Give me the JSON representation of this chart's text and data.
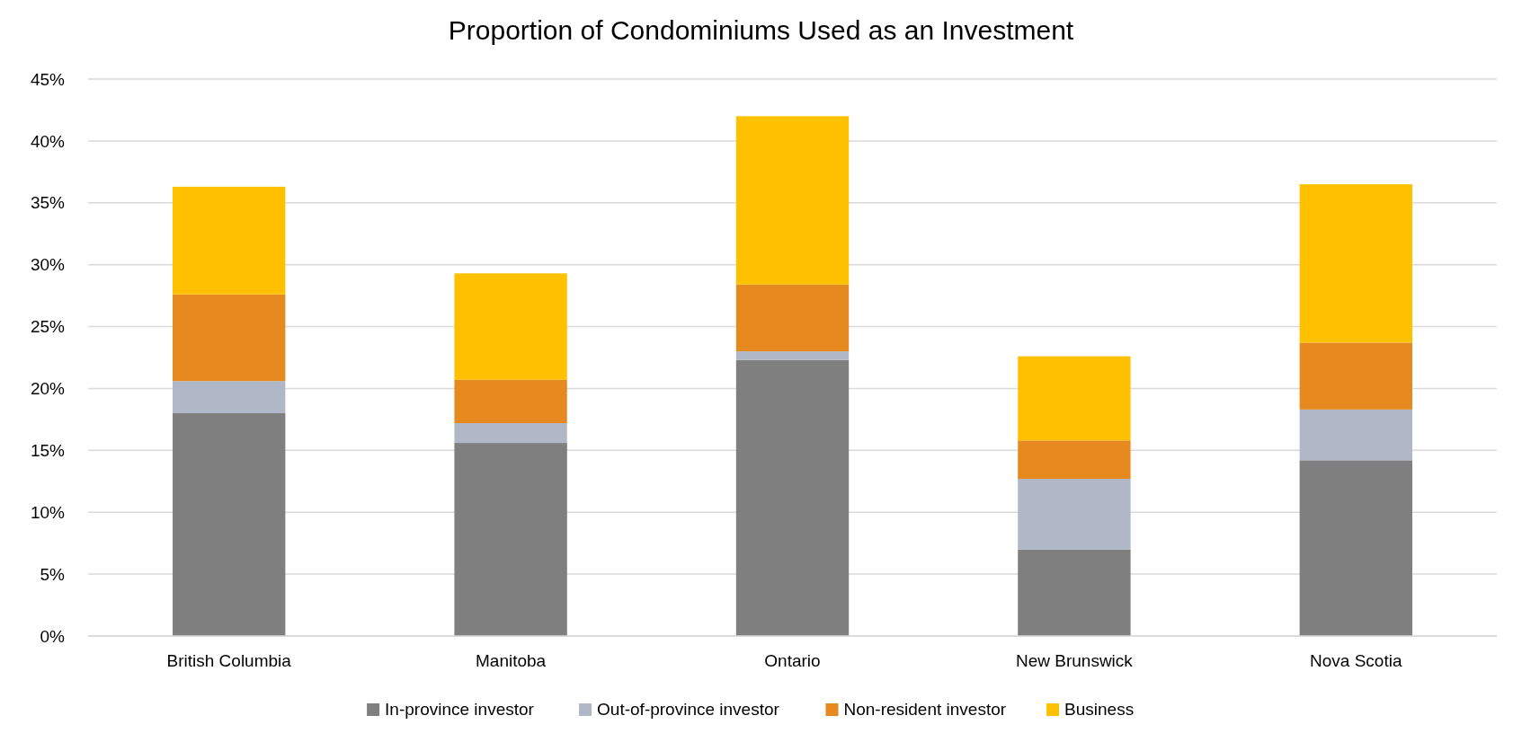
{
  "chart_data": {
    "type": "bar",
    "title": "Proportion of Condominiums Used as an Investment",
    "stacked": true,
    "categories": [
      "British Columbia",
      "Manitoba",
      "Ontario",
      "New Brunswick",
      "Nova Scotia"
    ],
    "series": [
      {
        "name": "In-province investor",
        "color": "#7f7f7f",
        "values": [
          18.0,
          15.6,
          22.3,
          7.0,
          14.2
        ]
      },
      {
        "name": "Out-of-province investor",
        "color": "#b0b7c6",
        "values": [
          2.6,
          1.6,
          0.7,
          5.7,
          4.1
        ]
      },
      {
        "name": "Non-resident investor",
        "color": "#e68a1f",
        "values": [
          7.0,
          3.5,
          5.4,
          3.1,
          5.4
        ]
      },
      {
        "name": "Business",
        "color": "#ffc000",
        "values": [
          8.7,
          8.6,
          13.6,
          6.8,
          12.8
        ]
      }
    ],
    "ylim": [
      0,
      45
    ],
    "yticks": [
      {
        "value": 0,
        "label": "0%"
      },
      {
        "value": 5,
        "label": "5%"
      },
      {
        "value": 10,
        "label": "10%"
      },
      {
        "value": 15,
        "label": "15%"
      },
      {
        "value": 20,
        "label": "20%"
      },
      {
        "value": 25,
        "label": "25%"
      },
      {
        "value": 30,
        "label": "30%"
      },
      {
        "value": 35,
        "label": "35%"
      },
      {
        "value": 40,
        "label": "40%"
      },
      {
        "value": 45,
        "label": "45%"
      }
    ],
    "grid": "y",
    "legend": "bottom"
  }
}
